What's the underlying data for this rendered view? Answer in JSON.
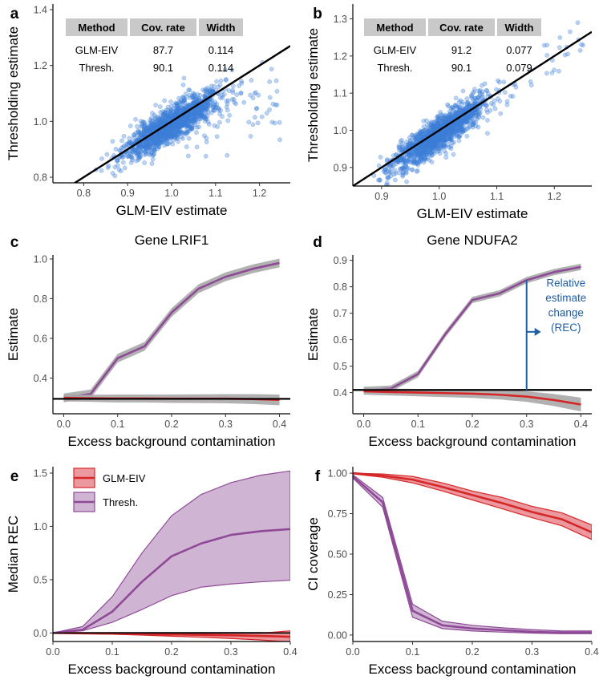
{
  "chart_data": [
    {
      "panel": "a",
      "type": "scatter",
      "title": "",
      "xlabel": "GLM-EIV estimate",
      "ylabel": "Thresholding estimate",
      "xlim": [
        0.73,
        1.27
      ],
      "ylim": [
        0.78,
        1.42
      ],
      "xticks": [
        0.8,
        0.9,
        1.0,
        1.1,
        1.2
      ],
      "yticks": [
        0.8,
        1.0,
        1.2,
        1.4
      ],
      "point_color": "#3b7dd8",
      "reference_line": {
        "intercept": 0,
        "slope": 1
      },
      "point_cloud": {
        "n": 1400,
        "center": [
          1.0,
          0.99
        ],
        "slope": 0.95,
        "sd_x": 0.055,
        "sd_noise": 0.03,
        "x_range": [
          0.84,
          1.25
        ],
        "outlier_count": 70
      },
      "table": {
        "headers": [
          "Method",
          "Cov. rate",
          "Width"
        ],
        "rows": [
          [
            "GLM-EIV",
            "87.7",
            "0.114"
          ],
          [
            "Thresh.",
            "90.1",
            "0.114"
          ]
        ]
      }
    },
    {
      "panel": "b",
      "type": "scatter",
      "title": "",
      "xlabel": "GLM-EIV estimate",
      "ylabel": "Thresholding estimate",
      "xlim": [
        0.85,
        1.265
      ],
      "ylim": [
        0.85,
        1.34
      ],
      "xticks": [
        0.9,
        1.0,
        1.1,
        1.2
      ],
      "yticks": [
        0.9,
        1.0,
        1.1,
        1.2,
        1.3
      ],
      "point_color": "#3b7dd8",
      "reference_line": {
        "intercept": 0,
        "slope": 1
      },
      "point_cloud": {
        "n": 1400,
        "center": [
          1.0,
          0.99
        ],
        "slope": 1.0,
        "sd_x": 0.04,
        "sd_noise": 0.022,
        "x_range": [
          0.86,
          1.25
        ],
        "outlier_count": 45
      },
      "table": {
        "headers": [
          "Method",
          "Cov. rate",
          "Width"
        ],
        "rows": [
          [
            "GLM-EIV",
            "91.2",
            "0.077"
          ],
          [
            "Thresh.",
            "90.1",
            "0.079"
          ]
        ]
      }
    },
    {
      "panel": "c",
      "type": "line",
      "title": "Gene LRIF1",
      "xlabel": "Excess background contamination",
      "ylabel": "Estimate",
      "xlim": [
        -0.02,
        0.42
      ],
      "ylim": [
        0.22,
        1.02
      ],
      "xticks": [
        0.0,
        0.1,
        0.2,
        0.3,
        0.4
      ],
      "yticks": [
        0.4,
        0.6,
        0.8,
        1.0
      ],
      "x": [
        0.0,
        0.05,
        0.1,
        0.15,
        0.2,
        0.25,
        0.3,
        0.35,
        0.4
      ],
      "hline": 0.295,
      "series": [
        {
          "name": "Thresh.",
          "color": "#8e4a97",
          "values": [
            0.3,
            0.32,
            0.5,
            0.56,
            0.73,
            0.85,
            0.91,
            0.95,
            0.98
          ],
          "band_halfwidth": 0.022
        },
        {
          "name": "GLM-EIV",
          "color": "#d62728",
          "values": [
            0.3,
            0.298,
            0.297,
            0.297,
            0.296,
            0.296,
            0.296,
            0.294,
            0.29
          ],
          "band_halfwidth": [
            0.018,
            0.018,
            0.02,
            0.02,
            0.021,
            0.022,
            0.023,
            0.025,
            0.027
          ]
        }
      ]
    },
    {
      "panel": "d",
      "type": "line",
      "title": "Gene NDUFA2",
      "xlabel": "Excess background contamination",
      "ylabel": "Estimate",
      "xlim": [
        -0.02,
        0.42
      ],
      "ylim": [
        0.32,
        0.92
      ],
      "xticks": [
        0.0,
        0.1,
        0.2,
        0.3,
        0.4
      ],
      "yticks": [
        0.4,
        0.5,
        0.6,
        0.7,
        0.8,
        0.9
      ],
      "x": [
        0.0,
        0.05,
        0.1,
        0.15,
        0.2,
        0.25,
        0.3,
        0.35,
        0.4
      ],
      "hline": 0.41,
      "series": [
        {
          "name": "Thresh.",
          "color": "#8e4a97",
          "values": [
            0.41,
            0.415,
            0.47,
            0.62,
            0.75,
            0.775,
            0.825,
            0.855,
            0.875
          ],
          "band_halfwidth": 0.012
        },
        {
          "name": "GLM-EIV",
          "color": "#d62728",
          "values": [
            0.405,
            0.402,
            0.4,
            0.398,
            0.396,
            0.392,
            0.385,
            0.372,
            0.355
          ],
          "band_halfwidth": [
            0.013,
            0.013,
            0.014,
            0.015,
            0.016,
            0.018,
            0.02,
            0.023,
            0.026
          ]
        }
      ],
      "annotation": {
        "text_lines": [
          "Relative",
          "estimate",
          "change",
          "(REC)"
        ],
        "x": 0.3,
        "from": 0.41,
        "to": 0.825,
        "color": "#1f5fa6"
      }
    },
    {
      "panel": "e",
      "type": "area",
      "title": "",
      "xlabel": "Excess background contamination",
      "ylabel": "Median REC",
      "xlim": [
        0.0,
        0.4
      ],
      "ylim": [
        -0.08,
        1.56
      ],
      "xticks": [
        0.0,
        0.1,
        0.2,
        0.3,
        0.4
      ],
      "yticks": [
        0.0,
        0.5,
        1.0,
        1.5
      ],
      "x": [
        0.0,
        0.05,
        0.1,
        0.15,
        0.2,
        0.25,
        0.3,
        0.35,
        0.4
      ],
      "hline": 0.0,
      "series": [
        {
          "name": "GLM-EIV",
          "color": "#d62728",
          "fill": "#e8868d",
          "values": [
            0.0,
            -0.003,
            -0.006,
            -0.01,
            -0.014,
            -0.018,
            -0.022,
            -0.028,
            -0.035
          ],
          "lower": [
            0.0,
            -0.006,
            -0.012,
            -0.02,
            -0.03,
            -0.04,
            -0.052,
            -0.066,
            -0.085
          ],
          "upper": [
            0.0,
            0.0,
            0.0,
            0.0,
            -0.002,
            -0.004,
            -0.004,
            -0.002,
            0.02
          ]
        },
        {
          "name": "Thresh.",
          "color": "#8e4a97",
          "fill": "#c8a7cb",
          "values": [
            0.0,
            0.03,
            0.2,
            0.48,
            0.72,
            0.84,
            0.92,
            0.955,
            0.975
          ],
          "lower": [
            0.0,
            0.02,
            0.1,
            0.22,
            0.35,
            0.43,
            0.46,
            0.48,
            0.495
          ],
          "upper": [
            0.0,
            0.06,
            0.34,
            0.75,
            1.1,
            1.3,
            1.41,
            1.48,
            1.52
          ]
        }
      ],
      "legend": {
        "position": "top-left",
        "entries": [
          "GLM-EIV",
          "Thresh."
        ]
      }
    },
    {
      "panel": "f",
      "type": "area",
      "title": "",
      "xlabel": "Excess background contamination",
      "ylabel": "CI coverage",
      "xlim": [
        0.0,
        0.4
      ],
      "ylim": [
        -0.04,
        1.04
      ],
      "xticks": [
        0.0,
        0.1,
        0.2,
        0.3,
        0.4
      ],
      "yticks": [
        0.0,
        0.25,
        0.5,
        0.75,
        1.0
      ],
      "x": [
        0.0,
        0.05,
        0.1,
        0.15,
        0.2,
        0.25,
        0.3,
        0.35,
        0.4
      ],
      "series": [
        {
          "name": "GLM-EIV",
          "color": "#d62728",
          "fill": "#e8868d",
          "values": [
            1.0,
            0.985,
            0.96,
            0.915,
            0.865,
            0.815,
            0.76,
            0.715,
            0.635
          ],
          "lower": [
            0.995,
            0.975,
            0.94,
            0.89,
            0.835,
            0.78,
            0.725,
            0.675,
            0.59
          ],
          "upper": [
            1.0,
            0.995,
            0.98,
            0.94,
            0.89,
            0.85,
            0.795,
            0.755,
            0.68
          ]
        },
        {
          "name": "Thresh.",
          "color": "#8e4a97",
          "fill": "#c8a7cb",
          "values": [
            0.98,
            0.82,
            0.15,
            0.06,
            0.04,
            0.03,
            0.02,
            0.015,
            0.015
          ],
          "lower": [
            0.97,
            0.79,
            0.11,
            0.04,
            0.025,
            0.018,
            0.012,
            0.008,
            0.008
          ],
          "upper": [
            0.99,
            0.85,
            0.19,
            0.085,
            0.06,
            0.045,
            0.033,
            0.025,
            0.025
          ]
        }
      ]
    }
  ],
  "panel_letters": [
    "a",
    "b",
    "c",
    "d",
    "e",
    "f"
  ]
}
